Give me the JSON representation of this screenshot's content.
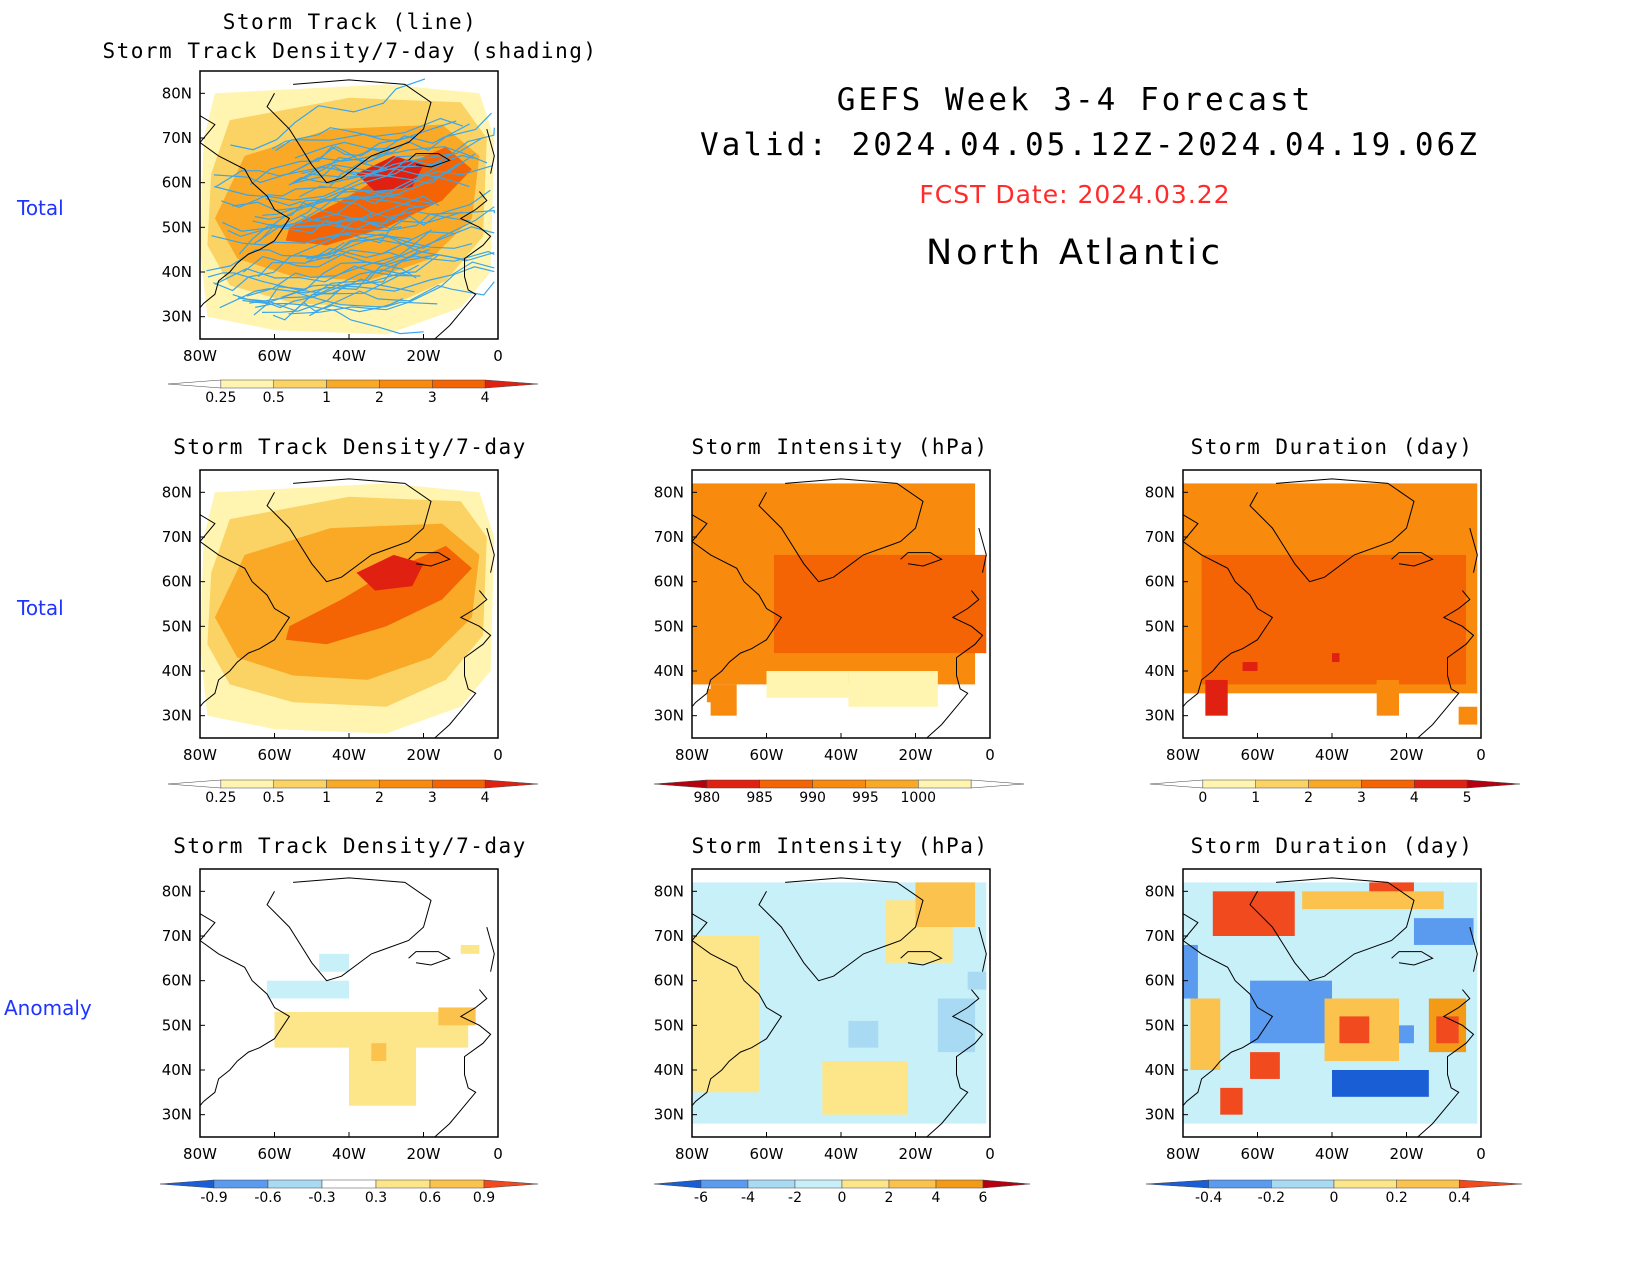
{
  "header": {
    "title_line1": "GEFS Week 3-4 Forecast",
    "title_line2": "Valid: 2024.04.05.12Z-2024.04.19.06Z",
    "fcst_date": "FCST Date: 2024.03.22",
    "region": "North Atlantic"
  },
  "row_labels": {
    "row1": "Total",
    "row2": "Total",
    "row3": "Anomaly"
  },
  "axes": {
    "lon_ticks": [
      "80W",
      "60W",
      "40W",
      "20W",
      "0"
    ],
    "lat_ticks": [
      "80N",
      "70N",
      "60N",
      "50N",
      "40N",
      "30N"
    ]
  },
  "panels": {
    "track": {
      "title_line1": "Storm Track (line)",
      "title_line2": "Storm Track Density/7-day (shading)"
    },
    "density_total": {
      "title": "Storm Track Density/7-day"
    },
    "intensity_total": {
      "title": "Storm Intensity (hPa)"
    },
    "duration_total": {
      "title": "Storm Duration (day)"
    },
    "density_anom": {
      "title": "Storm Track Density/7-day"
    },
    "intensity_anom": {
      "title": "Storm Intensity (hPa)"
    },
    "duration_anom": {
      "title": "Storm Duration (day)"
    }
  },
  "colorbars": {
    "density": {
      "labels": [
        "0.25",
        "0.5",
        "1",
        "2",
        "3",
        "4"
      ],
      "colors": [
        "#fff5b0",
        "#fbd365",
        "#f9a925",
        "#f88b0e",
        "#f46405",
        "#e02010",
        "#b40010"
      ]
    },
    "intensity": {
      "labels": [
        "980",
        "985",
        "990",
        "995",
        "1000"
      ],
      "colors": [
        "#b40010",
        "#e02010",
        "#f46405",
        "#f88b0e",
        "#f9a925",
        "#fff5b0"
      ]
    },
    "duration": {
      "labels": [
        "0",
        "1",
        "2",
        "3",
        "4",
        "5"
      ],
      "colors": [
        "#fff5b0",
        "#fbd365",
        "#f9a925",
        "#f46405",
        "#e02010",
        "#b40010"
      ]
    },
    "density_anom": {
      "labels": [
        "-0.9",
        "-0.6",
        "-0.3",
        "0.3",
        "0.6",
        "0.9"
      ]
    },
    "intensity_anom": {
      "labels": [
        "-6",
        "-4",
        "-2",
        "0",
        "2",
        "4",
        "6"
      ]
    },
    "duration_anom": {
      "labels": [
        "-0.4",
        "-0.2",
        "0",
        "0.2",
        "0.4"
      ]
    },
    "anom_colors": [
      "#1a5ed6",
      "#5a9bef",
      "#a8daf4",
      "#c8f0f8",
      "#fde68a",
      "#fbc24d",
      "#f39b17",
      "#f04a1e",
      "#b40010"
    ]
  },
  "colors": {
    "track_line": "#3aa6e8",
    "row_label": "#1f35ff",
    "fcst_date": "#ff2a2a"
  }
}
